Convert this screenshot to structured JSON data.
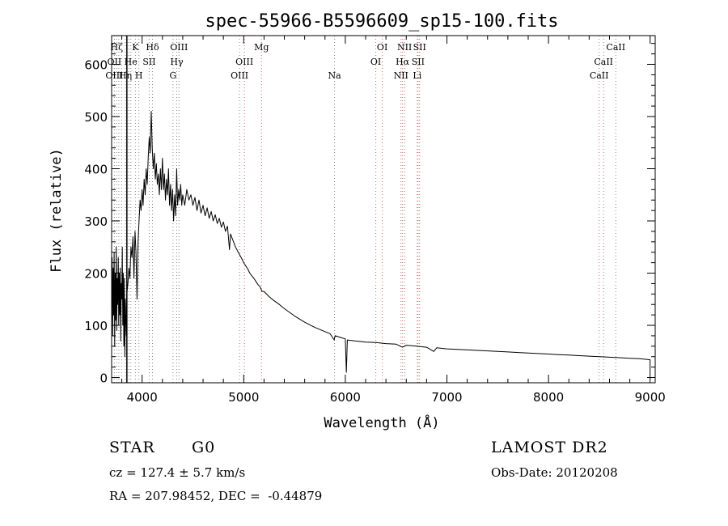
{
  "chart_data": {
    "type": "line",
    "title": "spec-55966-B5596609_sp15-100.fits",
    "xlabel": "Wavelength (Å)",
    "ylabel": "Flux (relative)",
    "xlim": [
      3700,
      9050
    ],
    "ylim": [
      -10,
      655
    ],
    "xticks": [
      4000,
      5000,
      6000,
      7000,
      8000,
      9000
    ],
    "yticks": [
      0,
      100,
      200,
      300,
      400,
      500,
      600
    ],
    "grid": false,
    "series": [
      {
        "color": "#000000",
        "points": [
          [
            3700,
            150
          ],
          [
            3705,
            230
          ],
          [
            3710,
            80
          ],
          [
            3715,
            210
          ],
          [
            3720,
            120
          ],
          [
            3725,
            240
          ],
          [
            3730,
            60
          ],
          [
            3735,
            200
          ],
          [
            3740,
            110
          ],
          [
            3745,
            250
          ],
          [
            3750,
            90
          ],
          [
            3755,
            190
          ],
          [
            3760,
            140
          ],
          [
            3765,
            230
          ],
          [
            3770,
            100
          ],
          [
            3775,
            200
          ],
          [
            3780,
            120
          ],
          [
            3785,
            210
          ],
          [
            3790,
            70
          ],
          [
            3795,
            180
          ],
          [
            3800,
            150
          ],
          [
            3805,
            250
          ],
          [
            3810,
            100
          ],
          [
            3815,
            200
          ],
          [
            3820,
            60
          ],
          [
            3825,
            190
          ],
          [
            3830,
            40
          ],
          [
            3835,
            150
          ],
          [
            3840,
            110
          ],
          [
            3845,
            80
          ],
          [
            3850,
            160
          ],
          [
            3860,
            180
          ],
          [
            3870,
            210
          ],
          [
            3880,
            190
          ],
          [
            3890,
            250
          ],
          [
            3900,
            230
          ],
          [
            3910,
            270
          ],
          [
            3920,
            190
          ],
          [
            3930,
            280
          ],
          [
            3940,
            240
          ],
          [
            3950,
            150
          ],
          [
            3960,
            260
          ],
          [
            3970,
            300
          ],
          [
            3980,
            340
          ],
          [
            3990,
            320
          ],
          [
            4000,
            360
          ],
          [
            4010,
            330
          ],
          [
            4020,
            380
          ],
          [
            4030,
            350
          ],
          [
            4040,
            400
          ],
          [
            4050,
            370
          ],
          [
            4060,
            420
          ],
          [
            4070,
            460
          ],
          [
            4080,
            430
          ],
          [
            4090,
            510
          ],
          [
            4100,
            440
          ],
          [
            4110,
            400
          ],
          [
            4120,
            430
          ],
          [
            4130,
            380
          ],
          [
            4140,
            410
          ],
          [
            4150,
            370
          ],
          [
            4160,
            390
          ],
          [
            4170,
            350
          ],
          [
            4180,
            400
          ],
          [
            4190,
            360
          ],
          [
            4200,
            420
          ],
          [
            4210,
            360
          ],
          [
            4220,
            390
          ],
          [
            4230,
            340
          ],
          [
            4240,
            380
          ],
          [
            4250,
            350
          ],
          [
            4260,
            400
          ],
          [
            4270,
            330
          ],
          [
            4280,
            370
          ],
          [
            4290,
            320
          ],
          [
            4300,
            360
          ],
          [
            4310,
            300
          ],
          [
            4320,
            350
          ],
          [
            4330,
            310
          ],
          [
            4340,
            400
          ],
          [
            4350,
            330
          ],
          [
            4360,
            360
          ],
          [
            4370,
            340
          ],
          [
            4380,
            370
          ],
          [
            4390,
            330
          ],
          [
            4400,
            350
          ],
          [
            4420,
            330
          ],
          [
            4440,
            360
          ],
          [
            4460,
            340
          ],
          [
            4480,
            350
          ],
          [
            4500,
            330
          ],
          [
            4520,
            345
          ],
          [
            4540,
            320
          ],
          [
            4560,
            340
          ],
          [
            4580,
            315
          ],
          [
            4600,
            330
          ],
          [
            4620,
            310
          ],
          [
            4640,
            325
          ],
          [
            4660,
            305
          ],
          [
            4680,
            318
          ],
          [
            4700,
            300
          ],
          [
            4720,
            312
          ],
          [
            4740,
            295
          ],
          [
            4760,
            305
          ],
          [
            4780,
            288
          ],
          [
            4800,
            298
          ],
          [
            4820,
            280
          ],
          [
            4840,
            290
          ],
          [
            4860,
            245
          ],
          [
            4870,
            275
          ],
          [
            4880,
            270
          ],
          [
            4900,
            260
          ],
          [
            4920,
            250
          ],
          [
            4940,
            242
          ],
          [
            4960,
            235
          ],
          [
            4980,
            228
          ],
          [
            5000,
            220
          ],
          [
            5020,
            214
          ],
          [
            5040,
            208
          ],
          [
            5060,
            200
          ],
          [
            5080,
            195
          ],
          [
            5100,
            190
          ],
          [
            5120,
            184
          ],
          [
            5140,
            178
          ],
          [
            5160,
            174
          ],
          [
            5180,
            165
          ],
          [
            5200,
            165
          ],
          [
            5250,
            155
          ],
          [
            5300,
            147
          ],
          [
            5350,
            140
          ],
          [
            5400,
            132
          ],
          [
            5450,
            125
          ],
          [
            5500,
            118
          ],
          [
            5550,
            112
          ],
          [
            5600,
            106
          ],
          [
            5650,
            101
          ],
          [
            5700,
            96
          ],
          [
            5750,
            92
          ],
          [
            5800,
            88
          ],
          [
            5850,
            84
          ],
          [
            5890,
            72
          ],
          [
            5900,
            80
          ],
          [
            5950,
            77
          ],
          [
            6000,
            74
          ],
          [
            6010,
            10
          ],
          [
            6020,
            72
          ],
          [
            6100,
            70
          ],
          [
            6200,
            68
          ],
          [
            6300,
            67
          ],
          [
            6400,
            65
          ],
          [
            6500,
            64
          ],
          [
            6563,
            58
          ],
          [
            6600,
            62
          ],
          [
            6700,
            60
          ],
          [
            6800,
            58
          ],
          [
            6870,
            50
          ],
          [
            6900,
            57
          ],
          [
            7000,
            55
          ],
          [
            7100,
            54
          ],
          [
            7200,
            53
          ],
          [
            7300,
            52
          ],
          [
            7400,
            51
          ],
          [
            7500,
            50
          ],
          [
            7600,
            49
          ],
          [
            7700,
            48
          ],
          [
            7800,
            47
          ],
          [
            7900,
            46
          ],
          [
            8000,
            45
          ],
          [
            8100,
            44
          ],
          [
            8200,
            43
          ],
          [
            8300,
            42
          ],
          [
            8400,
            41
          ],
          [
            8500,
            40
          ],
          [
            8600,
            39
          ],
          [
            8700,
            38
          ],
          [
            8800,
            37
          ],
          [
            8900,
            36
          ],
          [
            9000,
            34
          ],
          [
            9000,
            5
          ]
        ]
      }
    ],
    "line_markers": {
      "vlines": [
        {
          "x": 3727,
          "color": "#888888"
        },
        {
          "x": 3750,
          "color": "#888888"
        },
        {
          "x": 3771,
          "color": "#888888"
        },
        {
          "x": 3798,
          "color": "#888888"
        },
        {
          "x": 3835,
          "color": "#888888"
        },
        {
          "x": 3869,
          "color": "#888888"
        },
        {
          "x": 3889,
          "color": "#888888"
        },
        {
          "x": 3934,
          "color": "#888888"
        },
        {
          "x": 3968,
          "color": "#888888"
        },
        {
          "x": 4070,
          "color": "#888888"
        },
        {
          "x": 4102,
          "color": "#888888"
        },
        {
          "x": 4304,
          "color": "#888888"
        },
        {
          "x": 4341,
          "color": "#888888"
        },
        {
          "x": 4363,
          "color": "#888888"
        },
        {
          "x": 4959,
          "color": "#888888"
        },
        {
          "x": 5007,
          "color": "#e06060"
        },
        {
          "x": 5175,
          "color": "#e06060"
        },
        {
          "x": 5894,
          "color": "#888888"
        },
        {
          "x": 6300,
          "color": "#888888"
        },
        {
          "x": 6364,
          "color": "#e06060"
        },
        {
          "x": 6548,
          "color": "#e06060"
        },
        {
          "x": 6563,
          "color": "#888888"
        },
        {
          "x": 6583,
          "color": "#e06060"
        },
        {
          "x": 6708,
          "color": "#888888"
        },
        {
          "x": 6716,
          "color": "#e06060"
        },
        {
          "x": 6731,
          "color": "#e06060"
        },
        {
          "x": 8498,
          "color": "#e06060"
        },
        {
          "x": 8542,
          "color": "#888888"
        },
        {
          "x": 8662,
          "color": "#888888"
        }
      ],
      "labels": [
        {
          "text": "Hζ",
          "x": 3750,
          "row": 0
        },
        {
          "text": "K",
          "x": 3934,
          "row": 0
        },
        {
          "text": "Hδ",
          "x": 4102,
          "row": 0
        },
        {
          "text": "OIII",
          "x": 4363,
          "row": 0
        },
        {
          "text": "Mg",
          "x": 5175,
          "row": 0
        },
        {
          "text": "OI",
          "x": 6364,
          "row": 0
        },
        {
          "text": "NII",
          "x": 6583,
          "row": 0
        },
        {
          "text": "SII",
          "x": 6731,
          "row": 0
        },
        {
          "text": "CaII",
          "x": 8662,
          "row": 0
        },
        {
          "text": "OII",
          "x": 3727,
          "row": 1
        },
        {
          "text": "He",
          "x": 3889,
          "row": 1
        },
        {
          "text": "SII",
          "x": 4070,
          "row": 1
        },
        {
          "text": "Hγ",
          "x": 4341,
          "row": 1
        },
        {
          "text": "OIII",
          "x": 5007,
          "row": 1
        },
        {
          "text": "OI",
          "x": 6300,
          "row": 1
        },
        {
          "text": "Hα",
          "x": 6563,
          "row": 1
        },
        {
          "text": "SII",
          "x": 6716,
          "row": 1
        },
        {
          "text": "CaII",
          "x": 8542,
          "row": 1
        },
        {
          "text": "OIII",
          "x": 3727,
          "row": 2
        },
        {
          "text": "Hη",
          "x": 3835,
          "row": 2
        },
        {
          "text": "H",
          "x": 3968,
          "row": 2
        },
        {
          "text": "G",
          "x": 4304,
          "row": 2
        },
        {
          "text": "OIII",
          "x": 4959,
          "row": 2
        },
        {
          "text": "Na",
          "x": 5894,
          "row": 2
        },
        {
          "text": "NII",
          "x": 6548,
          "row": 2
        },
        {
          "text": "Li",
          "x": 6708,
          "row": 2
        },
        {
          "text": "CaII",
          "x": 8498,
          "row": 2
        }
      ]
    }
  },
  "info": {
    "object_class": "STAR",
    "subclass": "G0",
    "survey": "LAMOST DR2",
    "cz": "cz = 127.4 ± 5.7 km/s",
    "obs_date": "Obs-Date: 20120208",
    "coords": "RA = 207.98452, DEC =  -0.44879"
  }
}
